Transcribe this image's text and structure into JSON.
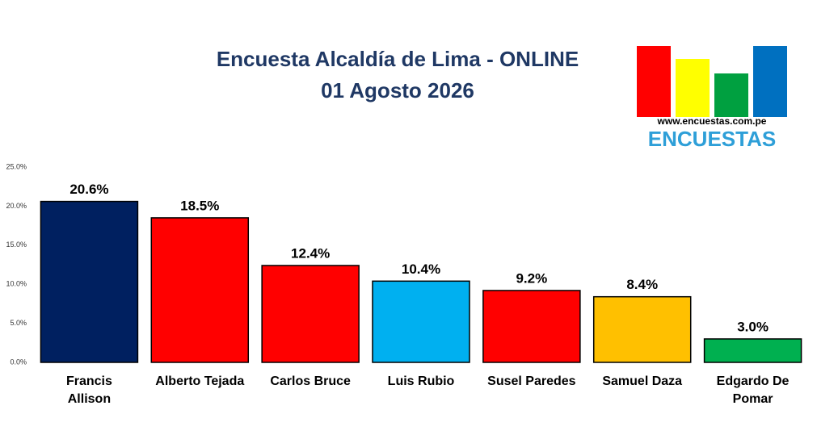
{
  "chart_data": {
    "type": "bar",
    "title": "Encuesta Alcaldía de Lima - ONLINE",
    "subtitle": "01 Agosto 2026",
    "categories": [
      "Francis Allison",
      "Alberto Tejada",
      "Carlos Bruce",
      "Luis Rubio",
      "Susel Paredes",
      "Samuel Daza",
      "Edgardo De Pomar"
    ],
    "values": [
      20.6,
      18.5,
      12.4,
      10.4,
      9.2,
      8.4,
      3.0
    ],
    "value_labels": [
      "20.6%",
      "18.5%",
      "12.4%",
      "10.4%",
      "9.2%",
      "8.4%",
      "3.0%"
    ],
    "colors": [
      "#002060",
      "#ff0000",
      "#ff0000",
      "#00b0f0",
      "#ff0000",
      "#ffc000",
      "#00b050"
    ],
    "ylim": [
      0,
      25
    ],
    "yticks": [
      {
        "value": 0,
        "label": "0.0%"
      },
      {
        "value": 5,
        "label": "5.0%"
      },
      {
        "value": 10,
        "label": "10.0%"
      },
      {
        "value": 15,
        "label": "15.0%"
      },
      {
        "value": 20,
        "label": "20.0%"
      },
      {
        "value": 25,
        "label": "25.0%"
      }
    ],
    "grid": false
  },
  "logo": {
    "url": "www.encuestas.com.pe",
    "name": "ENCUESTAS"
  }
}
